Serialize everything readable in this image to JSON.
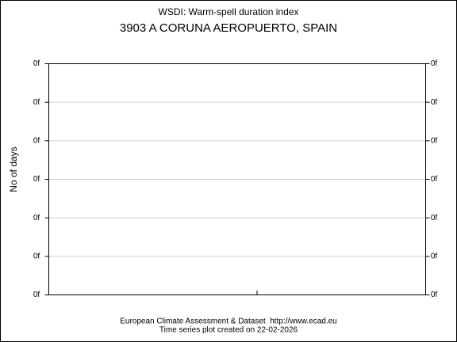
{
  "chart_data": {
    "type": "line",
    "title": "WSDI: Warm-spell duration index",
    "subtitle": "3903 A CORUNA AEROPUERTO, SPAIN",
    "y_label": "No of days",
    "footer": [
      "European Climate Assessment & Dataset  http://www.ecad.eu",
      "Time series plot created on 22-02-2026"
    ],
    "series": [],
    "ylim": [
      0,
      6
    ],
    "yticks": [
      {
        "value": 0,
        "label": "0f"
      },
      {
        "value": 1,
        "label": "0f"
      },
      {
        "value": 2,
        "label": "0f"
      },
      {
        "value": 3,
        "label": "0f"
      },
      {
        "value": 4,
        "label": "0f"
      },
      {
        "value": 5,
        "label": "0f"
      },
      {
        "value": 6,
        "label": "0f"
      }
    ],
    "grid": true
  }
}
